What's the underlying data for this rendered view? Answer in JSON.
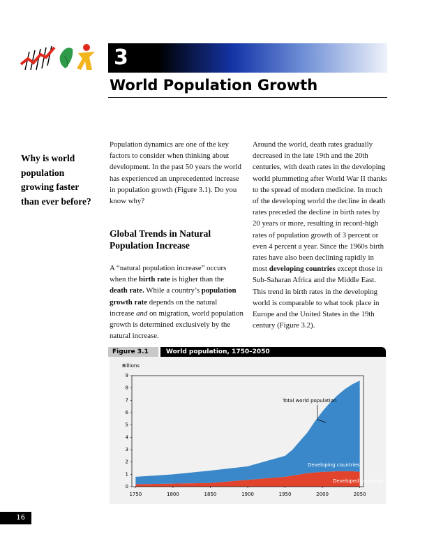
{
  "header": {
    "chapter": "3",
    "title": "World Population Growth"
  },
  "sidebar": {
    "question": "Why is world population growing faster than ever before?"
  },
  "body": {
    "column1": {
      "paragraph1": [
        {
          "text": "Population dynamics are one of the key factors to consider when thinking about development. In the past 50 years the world has experienced an unprecedented increase in population growth (Figure 3.1). Do you know why?",
          "style": "normal"
        }
      ],
      "heading": "Global Trends in Natural Population Increase",
      "paragraph2": [
        {
          "text": "A “natural population increase” occurs when the ",
          "style": "normal"
        },
        {
          "text": "birth rate",
          "style": "bold"
        },
        {
          "text": " is higher than the ",
          "style": "normal"
        },
        {
          "text": "death rate.",
          "style": "bold"
        },
        {
          "text": " While a country’s ",
          "style": "normal"
        },
        {
          "text": "population growth rate",
          "style": "bold"
        },
        {
          "text": " depends on the natural increase ",
          "style": "normal"
        },
        {
          "text": "and",
          "style": "italic"
        },
        {
          "text": " on migration, world population growth is determined exclusively by the natural increase.",
          "style": "normal"
        }
      ]
    },
    "column2": {
      "paragraph": [
        {
          "text": "Around the world, death rates gradually decreased in the late 19th and the 20th centuries, with death rates in the developing world plummeting after World War II thanks to the spread of modern medicine. In much of the developing world the decline in death rates preceded the decline in birth rates by 20 years or more, resulting in record-high rates of population growth of 3 percent or even 4 percent a year. Since the 1960s birth rates have also been declining rapidly in most ",
          "style": "normal"
        },
        {
          "text": "developing countries",
          "style": "bold"
        },
        {
          "text": " except those in Sub-Saharan Africa and the Middle East. This trend in birth rates in the developing world is comparable to what took place in Europe and the United States in the 19th century (Figure 3.2).",
          "style": "normal"
        }
      ]
    }
  },
  "chart_data": {
    "type": "stacked-area",
    "label": "Figure 3.1",
    "title": "World population, 1750–2050",
    "y_label": "Billions",
    "annotation": "Total world population",
    "x": [
      1750,
      1800,
      1850,
      1900,
      1950,
      1960,
      1970,
      1980,
      1990,
      2000,
      2010,
      2020,
      2030,
      2040,
      2050
    ],
    "series": [
      {
        "name": "Developed countries",
        "color": "#e2432c",
        "values": [
          0.2,
          0.25,
          0.3,
          0.55,
          0.8,
          0.9,
          1.0,
          1.1,
          1.15,
          1.2,
          1.22,
          1.25,
          1.25,
          1.25,
          1.2
        ]
      },
      {
        "name": "Developing countries",
        "color": "#3a88c9",
        "values": [
          0.6,
          0.75,
          1.0,
          1.1,
          1.7,
          2.1,
          2.7,
          3.3,
          4.15,
          4.9,
          5.58,
          6.15,
          6.65,
          7.05,
          7.4
        ]
      }
    ],
    "xlim": [
      1745,
      2055
    ],
    "xticks": [
      1750,
      1800,
      1850,
      1900,
      1950,
      2000,
      2050
    ],
    "ylim": [
      0,
      9
    ],
    "yticks": [
      0,
      1,
      2,
      3,
      4,
      5,
      6,
      7,
      8,
      9
    ]
  },
  "footer": {
    "page": "16"
  }
}
